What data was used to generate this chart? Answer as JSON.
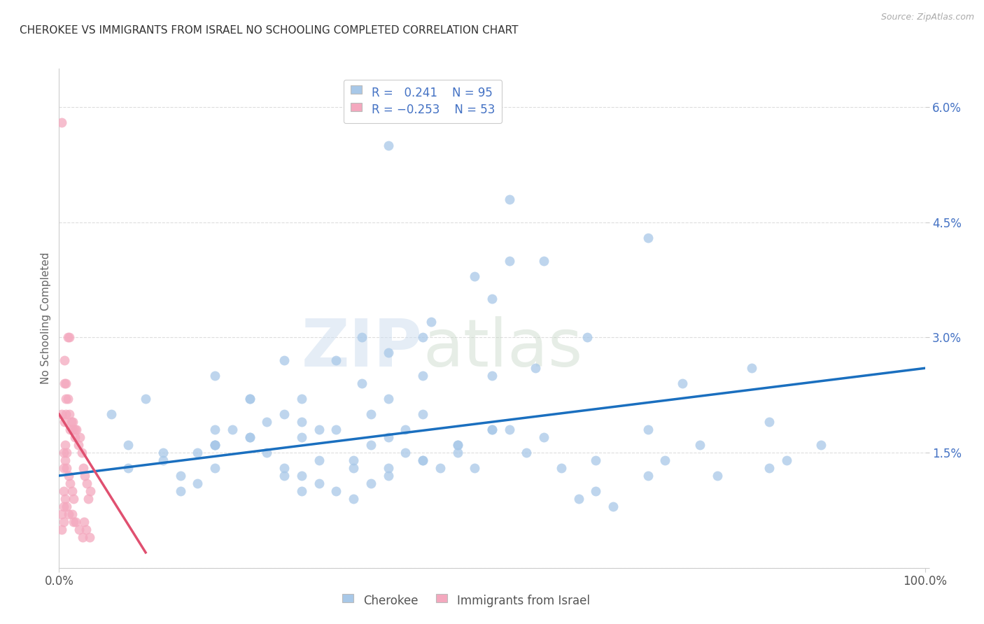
{
  "title": "CHEROKEE VS IMMIGRANTS FROM ISRAEL NO SCHOOLING COMPLETED CORRELATION CHART",
  "source": "Source: ZipAtlas.com",
  "ylabel": "No Schooling Completed",
  "ytick_labels": [
    "",
    "1.5%",
    "3.0%",
    "4.5%",
    "6.0%"
  ],
  "ytick_values": [
    0.0,
    0.015,
    0.03,
    0.045,
    0.06
  ],
  "xlim": [
    0.0,
    1.0
  ],
  "ylim": [
    0.0,
    0.065
  ],
  "blue_color": "#A8C8E8",
  "pink_color": "#F4A8BE",
  "blue_line_color": "#1A6FBF",
  "pink_line_color": "#E05070",
  "watermark_zip": "ZIP",
  "watermark_atlas": "atlas",
  "blue_R": 0.241,
  "blue_N": 95,
  "pink_R": -0.253,
  "pink_N": 53,
  "blue_points_x": [
    0.38,
    0.52,
    0.56,
    0.52,
    0.48,
    0.43,
    0.42,
    0.35,
    0.55,
    0.61,
    0.5,
    0.68,
    0.8,
    0.38,
    0.32,
    0.42,
    0.26,
    0.28,
    0.35,
    0.38,
    0.26,
    0.28,
    0.32,
    0.36,
    0.4,
    0.18,
    0.22,
    0.18,
    0.18,
    0.22,
    0.24,
    0.28,
    0.3,
    0.34,
    0.36,
    0.38,
    0.42,
    0.46,
    0.5,
    0.08,
    0.08,
    0.12,
    0.14,
    0.16,
    0.16,
    0.18,
    0.18,
    0.2,
    0.22,
    0.24,
    0.26,
    0.28,
    0.28,
    0.3,
    0.32,
    0.34,
    0.36,
    0.38,
    0.4,
    0.42,
    0.44,
    0.46,
    0.48,
    0.5,
    0.52,
    0.56,
    0.6,
    0.62,
    0.64,
    0.68,
    0.7,
    0.72,
    0.76,
    0.82,
    0.84,
    0.88,
    0.06,
    0.1,
    0.12,
    0.14,
    0.18,
    0.22,
    0.26,
    0.3,
    0.34,
    0.38,
    0.42,
    0.46,
    0.5,
    0.54,
    0.58,
    0.62,
    0.68,
    0.74,
    0.82
  ],
  "blue_points_y": [
    0.055,
    0.048,
    0.04,
    0.04,
    0.038,
    0.032,
    0.03,
    0.03,
    0.026,
    0.03,
    0.035,
    0.043,
    0.026,
    0.028,
    0.027,
    0.025,
    0.027,
    0.022,
    0.024,
    0.022,
    0.02,
    0.019,
    0.018,
    0.02,
    0.018,
    0.025,
    0.022,
    0.018,
    0.016,
    0.017,
    0.019,
    0.017,
    0.018,
    0.014,
    0.016,
    0.012,
    0.014,
    0.016,
    0.018,
    0.016,
    0.013,
    0.014,
    0.012,
    0.011,
    0.015,
    0.013,
    0.016,
    0.018,
    0.017,
    0.015,
    0.013,
    0.012,
    0.01,
    0.011,
    0.01,
    0.009,
    0.011,
    0.013,
    0.015,
    0.014,
    0.013,
    0.015,
    0.013,
    0.025,
    0.018,
    0.017,
    0.009,
    0.01,
    0.008,
    0.018,
    0.014,
    0.024,
    0.012,
    0.013,
    0.014,
    0.016,
    0.02,
    0.022,
    0.015,
    0.01,
    0.016,
    0.022,
    0.012,
    0.014,
    0.013,
    0.017,
    0.02,
    0.016,
    0.018,
    0.015,
    0.013,
    0.014,
    0.012,
    0.016,
    0.019
  ],
  "pink_points_x": [
    0.003,
    0.01,
    0.012,
    0.003,
    0.006,
    0.008,
    0.013,
    0.016,
    0.018,
    0.006,
    0.006,
    0.008,
    0.008,
    0.01,
    0.012,
    0.014,
    0.016,
    0.018,
    0.02,
    0.022,
    0.024,
    0.026,
    0.028,
    0.03,
    0.032,
    0.034,
    0.036,
    0.005,
    0.005,
    0.007,
    0.007,
    0.009,
    0.009,
    0.011,
    0.013,
    0.015,
    0.017,
    0.003,
    0.003,
    0.005,
    0.005,
    0.005,
    0.007,
    0.009,
    0.011,
    0.015,
    0.017,
    0.019,
    0.023,
    0.027,
    0.029,
    0.031,
    0.035
  ],
  "pink_points_y": [
    0.058,
    0.03,
    0.03,
    0.02,
    0.019,
    0.02,
    0.018,
    0.019,
    0.018,
    0.027,
    0.024,
    0.022,
    0.024,
    0.022,
    0.02,
    0.019,
    0.018,
    0.017,
    0.018,
    0.016,
    0.017,
    0.015,
    0.013,
    0.012,
    0.011,
    0.009,
    0.01,
    0.015,
    0.013,
    0.016,
    0.014,
    0.015,
    0.013,
    0.012,
    0.011,
    0.01,
    0.009,
    0.007,
    0.005,
    0.008,
    0.006,
    0.01,
    0.009,
    0.008,
    0.007,
    0.007,
    0.006,
    0.006,
    0.005,
    0.004,
    0.006,
    0.005,
    0.004
  ],
  "blue_line_x": [
    0.0,
    1.0
  ],
  "blue_line_y_start": 0.012,
  "blue_line_y_end": 0.026,
  "pink_line_x": [
    0.0,
    0.1
  ],
  "pink_line_y_start": 0.02,
  "pink_line_y_end": 0.002,
  "background_color": "#FFFFFF",
  "grid_color": "#DDDDDD",
  "tick_color": "#4472C4",
  "title_color": "#333333",
  "ylabel_color": "#666666"
}
